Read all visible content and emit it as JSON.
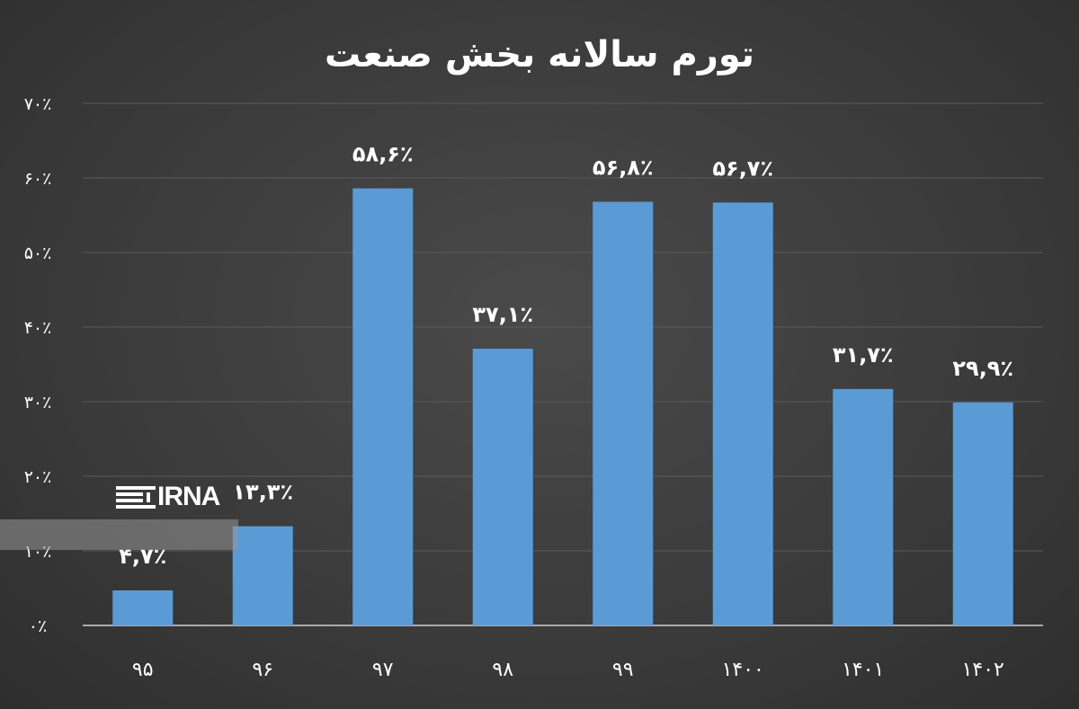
{
  "chart_data": {
    "type": "bar",
    "title": "تورم سالانه بخش صنعت",
    "categories": [
      "۹۵",
      "۹۶",
      "۹۷",
      "۹۸",
      "۹۹",
      "۱۴۰۰",
      "۱۴۰۱",
      "۱۴۰۲"
    ],
    "values": [
      4.7,
      13.3,
      58.6,
      37.1,
      56.8,
      56.7,
      31.7,
      29.9
    ],
    "data_labels": [
      "۴,۷٪",
      "۱۳,۳٪",
      "۵۸,۶٪",
      "۳۷,۱٪",
      "۵۶,۸٪",
      "۵۶,۷٪",
      "۳۱,۷٪",
      "۲۹,۹٪"
    ],
    "ylim": [
      0,
      70
    ],
    "yticks": [
      0,
      10,
      20,
      30,
      40,
      50,
      60,
      70
    ],
    "ytick_labels": [
      "۰٪",
      "۱۰٪",
      "۲۰٪",
      "۳۰٪",
      "۴۰٪",
      "۵۰٪",
      "۶۰٪",
      "۷۰٪"
    ],
    "grid": true,
    "bar_color": "#5b9bd5",
    "text_color": "#ffffff",
    "grid_color": "#5a5a5a"
  },
  "watermark": {
    "text": "IRNA",
    "icon": "irna-logo-icon"
  }
}
